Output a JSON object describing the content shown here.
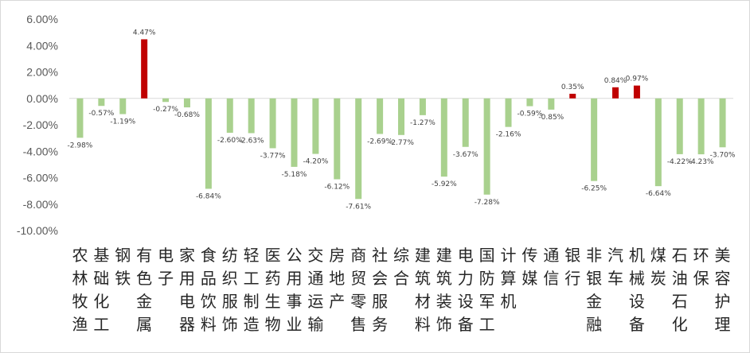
{
  "chart_data": {
    "type": "bar",
    "ylim": [
      -10,
      6
    ],
    "yticks": [
      "6.00%",
      "4.00%",
      "2.00%",
      "0.00%",
      "-2.00%",
      "-4.00%",
      "-6.00%",
      "-8.00%",
      "-10.00%"
    ],
    "ytick_values": [
      6,
      4,
      2,
      0,
      -2,
      -4,
      -6,
      -8,
      -10
    ],
    "grid": false,
    "legend": "none",
    "colors": {
      "positive": "#c00000",
      "negative": "#a9d18e",
      "zero_line": "#d9d9d9",
      "axis_text": "#595959"
    },
    "categories": [
      "农林牧渔",
      "基础化工",
      "钢铁",
      "有色金属",
      "电子",
      "家用电器",
      "食品饮料",
      "纺织服饰",
      "轻工制造",
      "医药生物",
      "公用事业",
      "交通运输",
      "房地产",
      "商贸零售",
      "社会服务",
      "综合",
      "建筑材料",
      "建筑装饰",
      "电力设备",
      "国防军工",
      "计算机",
      "传媒",
      "通信",
      "银行",
      "非银金融",
      "汽车",
      "机械设备",
      "煤炭",
      "石油石化",
      "环保",
      "美容护理"
    ],
    "values": [
      -2.98,
      -0.57,
      -1.19,
      4.47,
      -0.27,
      -0.68,
      -6.84,
      -2.6,
      -2.63,
      -3.77,
      -5.18,
      -4.2,
      -6.12,
      -7.61,
      -2.69,
      -2.77,
      -1.27,
      -5.92,
      -3.67,
      -7.28,
      -2.16,
      -0.59,
      -0.85,
      0.35,
      -6.25,
      0.84,
      0.97,
      -6.64,
      -4.22,
      -4.23,
      -3.7
    ],
    "labels": [
      "-2.98%",
      "-0.57%",
      "-1.19%",
      "4.47%",
      "-0.27%",
      "-0.68%",
      "-6.84%",
      "-2.60%",
      "-2.63%",
      "-3.77%",
      "-5.18%",
      "-4.20%",
      "-6.12%",
      "-7.61%",
      "-2.69%",
      "-2.77%",
      "-1.27%",
      "-5.92%",
      "-3.67%",
      "-7.28%",
      "-2.16%",
      "-0.59%",
      "-0.85%",
      "0.35%",
      "-6.25%",
      "0.84%",
      "0.97%",
      "-6.64%",
      "-4.22%",
      "-4.23%",
      "-3.70%"
    ]
  }
}
